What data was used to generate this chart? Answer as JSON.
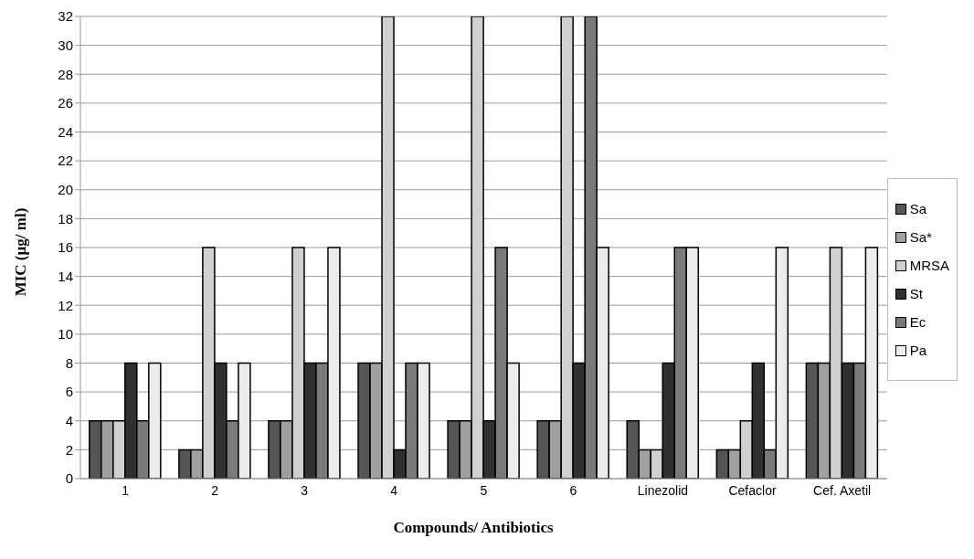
{
  "chart_data": {
    "type": "bar",
    "xlabel": "Compounds/ Antibiotics",
    "ylabel": "MIC (µg/ ml)",
    "categories": [
      "1",
      "2",
      "3",
      "4",
      "5",
      "6",
      "Linezolid",
      "Cefaclor",
      "Cef. Axetil"
    ],
    "series": [
      {
        "name": "Sa",
        "color": "#555555",
        "values": [
          4,
          2,
          4,
          8,
          4,
          4,
          4,
          2,
          8
        ]
      },
      {
        "name": "Sa*",
        "color": "#a0a0a0",
        "values": [
          4,
          2,
          4,
          8,
          4,
          4,
          2,
          2,
          8
        ]
      },
      {
        "name": "MRSA",
        "color": "#d0d0d0",
        "values": [
          4,
          16,
          16,
          32,
          32,
          32,
          2,
          4,
          16
        ]
      },
      {
        "name": "St",
        "color": "#303030",
        "values": [
          8,
          8,
          8,
          2,
          4,
          8,
          8,
          8,
          8
        ]
      },
      {
        "name": "Ec",
        "color": "#7a7a7a",
        "values": [
          4,
          4,
          8,
          8,
          16,
          32,
          16,
          2,
          8
        ]
      },
      {
        "name": "Pa",
        "color": "#ececec",
        "values": [
          8,
          8,
          16,
          8,
          8,
          16,
          16,
          16,
          16
        ]
      }
    ],
    "ylim": [
      0,
      32
    ],
    "yticks": [
      0,
      2,
      4,
      6,
      8,
      10,
      12,
      14,
      16,
      18,
      20,
      22,
      24,
      26,
      28,
      30,
      32
    ],
    "grid": "y",
    "legend": "right"
  }
}
